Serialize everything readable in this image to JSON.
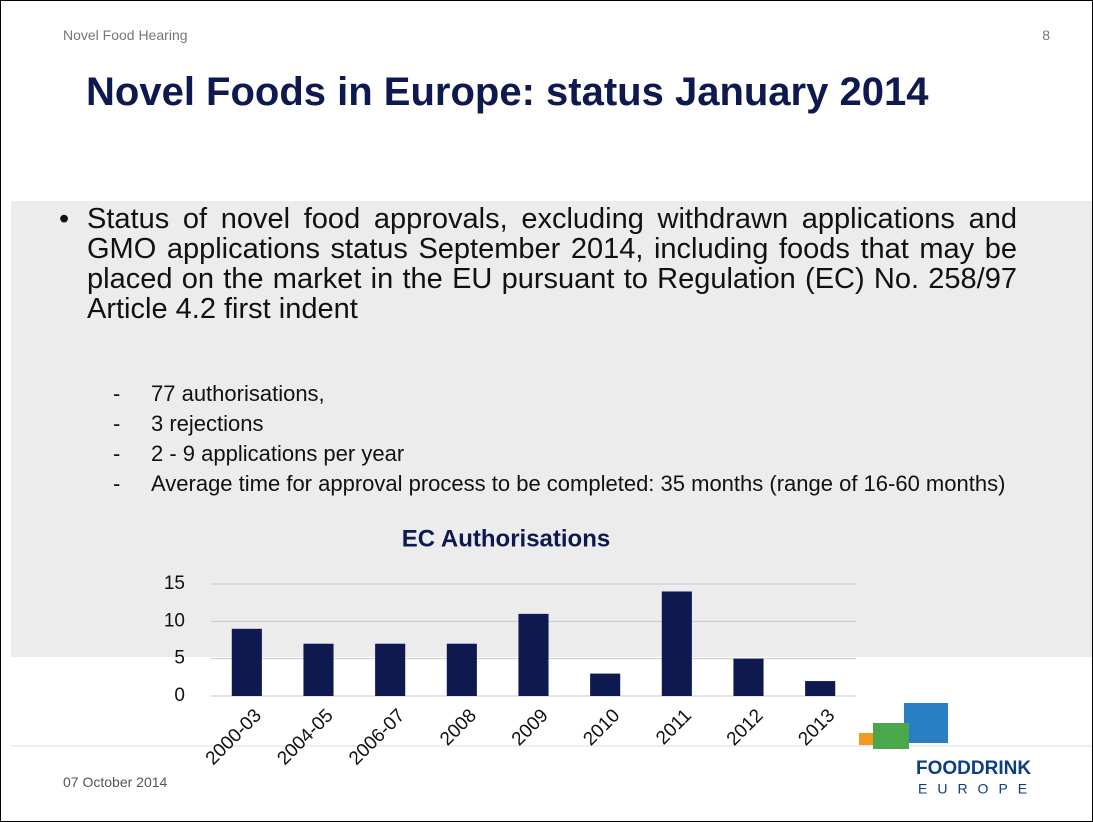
{
  "header": {
    "left": "Novel Food Hearing",
    "page": "8"
  },
  "title": "Novel Foods in Europe: status January 2014",
  "bullet": "Status of novel food approvals, excluding withdrawn applications and GMO applications status September 2014, including foods that may be placed on the market in the EU pursuant  to Regulation (EC) No. 258/97 Article 4.2 first indent",
  "sub_bullets": [
    "77 authorisations,",
    "3 rejections",
    "2 - 9 applications per year",
    "Average time for approval process to be completed: 35 months (range of 16-60 months)"
  ],
  "chart_data": {
    "type": "bar",
    "title": "EC Authorisations",
    "categories": [
      "2000-03",
      "2004-05",
      "2006-07",
      "2008",
      "2009",
      "2010",
      "2011",
      "2012",
      "2013"
    ],
    "values": [
      9,
      7,
      7,
      7,
      11,
      3,
      14,
      5,
      2
    ],
    "color": "#0e1a4f",
    "ylim": [
      0,
      15
    ],
    "yticks": [
      0,
      5,
      10,
      15
    ],
    "grid": true
  },
  "footer": {
    "date": "07 October 2014",
    "logo_top": "FOODDRINK",
    "logo_bottom": "EUROPE"
  }
}
